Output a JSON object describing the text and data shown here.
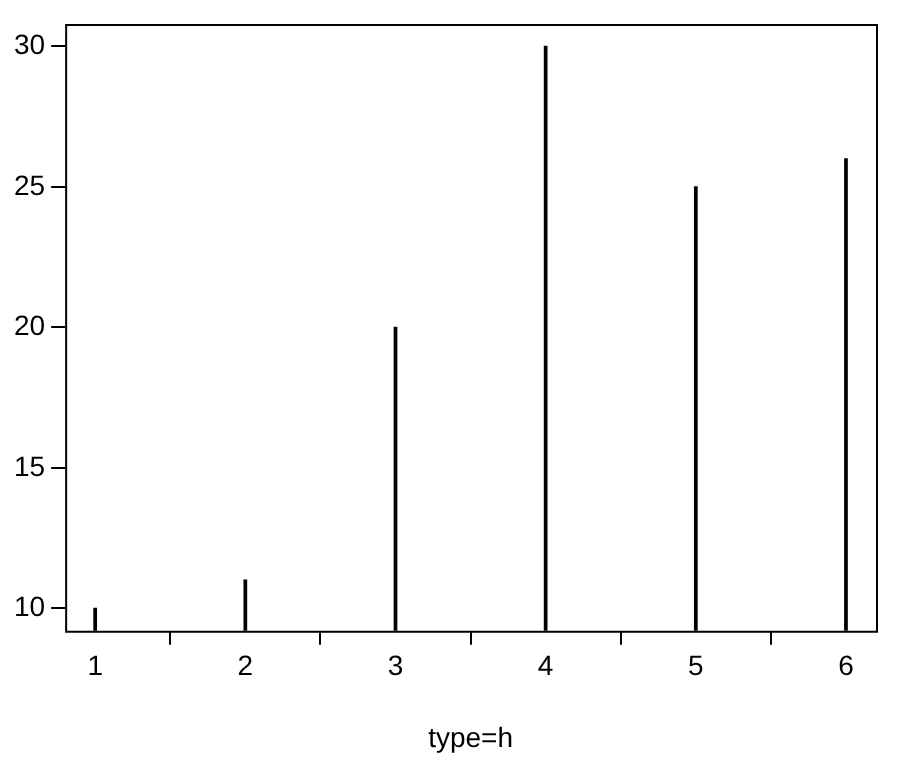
{
  "chart_data": {
    "type": "bar",
    "xlabel": "type=h",
    "x": [
      1,
      2,
      3,
      4,
      5,
      6
    ],
    "values": [
      10,
      11,
      20,
      30,
      25,
      26
    ],
    "color": "#000000",
    "xlim": [
      0.8,
      6.2
    ],
    "xticks": [
      1,
      2,
      3,
      4,
      5,
      6
    ],
    "ylim": [
      9.2,
      30.8
    ],
    "yticks": [
      10,
      15,
      20,
      25,
      30
    ],
    "grid": false,
    "legend": false
  }
}
